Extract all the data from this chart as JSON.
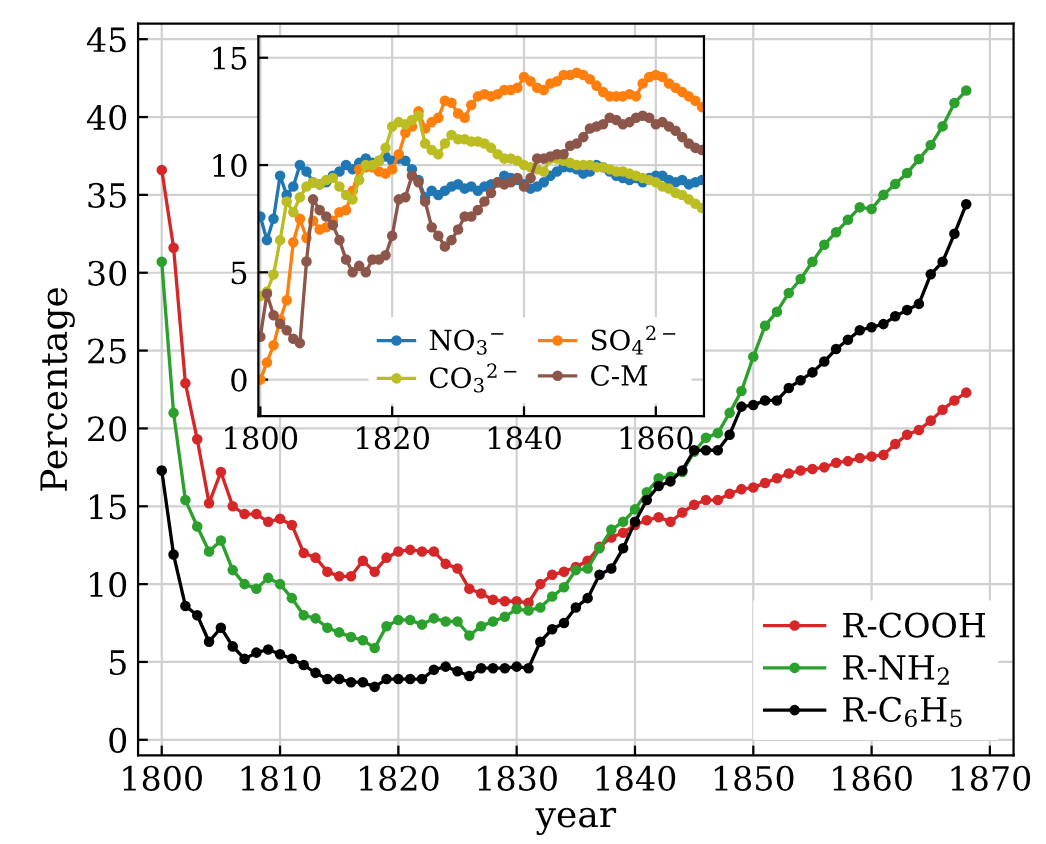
{
  "chart_data": [
    {
      "type": "line",
      "xlabel": "year",
      "ylabel": "Percentage",
      "x": [
        1800,
        1801,
        1802,
        1803,
        1804,
        1805,
        1806,
        1807,
        1808,
        1809,
        1810,
        1811,
        1812,
        1813,
        1814,
        1815,
        1816,
        1817,
        1818,
        1819,
        1820,
        1821,
        1822,
        1823,
        1824,
        1825,
        1826,
        1827,
        1828,
        1829,
        1830,
        1831,
        1832,
        1833,
        1834,
        1835,
        1836,
        1837,
        1838,
        1839,
        1840,
        1841,
        1842,
        1843,
        1844,
        1845,
        1846,
        1847,
        1848,
        1849,
        1850,
        1851,
        1852,
        1853,
        1854,
        1855,
        1856,
        1857,
        1858,
        1859,
        1860,
        1861,
        1862,
        1863,
        1864,
        1865,
        1866,
        1867,
        1868
      ],
      "xlim": [
        1798,
        1872
      ],
      "xticks": [
        1800,
        1810,
        1820,
        1830,
        1840,
        1850,
        1860,
        1870
      ],
      "ylim": [
        -1,
        46
      ],
      "yticks": [
        0,
        5,
        10,
        15,
        20,
        25,
        30,
        35,
        40,
        45
      ],
      "grid": true,
      "legend": "bottom right",
      "marker": "circle",
      "line_style": "solid",
      "series": [
        {
          "name": "R-COOH",
          "color": "#d62728",
          "values": [
            36.6,
            31.6,
            22.9,
            19.3,
            15.2,
            17.2,
            15.0,
            14.5,
            14.5,
            14.0,
            14.2,
            13.8,
            12.0,
            11.7,
            10.8,
            10.5,
            10.5,
            11.5,
            10.8,
            11.7,
            12.1,
            12.2,
            12.1,
            12.1,
            11.3,
            11.0,
            9.7,
            9.4,
            9.0,
            8.9,
            8.9,
            8.8,
            10.0,
            10.6,
            10.8,
            11.1,
            11.5,
            12.4,
            13.0,
            13.3,
            13.8,
            14.1,
            14.3,
            14.0,
            14.6,
            15.1,
            15.4,
            15.4,
            15.8,
            16.1,
            16.2,
            16.5,
            16.8,
            17.1,
            17.3,
            17.4,
            17.5,
            17.8,
            17.9,
            18.1,
            18.2,
            18.3,
            19.0,
            19.6,
            19.9,
            20.5,
            21.2,
            21.8,
            22.3
          ]
        },
        {
          "name": "R-NH$_{2}$",
          "color": "#2ca02c",
          "values": [
            30.7,
            21.0,
            15.4,
            13.7,
            12.1,
            12.8,
            10.9,
            10.0,
            9.7,
            10.4,
            10.0,
            9.1,
            8.0,
            7.8,
            7.2,
            6.9,
            6.6,
            6.4,
            5.9,
            7.3,
            7.7,
            7.7,
            7.4,
            7.8,
            7.6,
            7.6,
            6.7,
            7.3,
            7.6,
            7.9,
            8.4,
            8.3,
            8.5,
            9.2,
            9.8,
            10.9,
            11.0,
            12.3,
            13.5,
            14.0,
            14.8,
            15.9,
            16.8,
            16.9,
            17.2,
            18.5,
            19.4,
            19.7,
            21.0,
            22.4,
            24.6,
            26.6,
            27.5,
            28.7,
            29.6,
            30.7,
            31.8,
            32.6,
            33.4,
            34.2,
            34.1,
            35.0,
            35.7,
            36.4,
            37.3,
            38.2,
            39.4,
            40.9,
            41.7
          ]
        },
        {
          "name": "R-C$_{6}$H$_{5}$",
          "color": "#000000",
          "values": [
            17.3,
            11.9,
            8.6,
            8.0,
            6.3,
            7.2,
            6.0,
            5.2,
            5.6,
            5.8,
            5.5,
            5.2,
            4.8,
            4.3,
            3.9,
            3.9,
            3.7,
            3.7,
            3.4,
            3.9,
            3.9,
            3.9,
            3.9,
            4.5,
            4.7,
            4.4,
            4.1,
            4.6,
            4.6,
            4.6,
            4.7,
            4.6,
            6.3,
            7.1,
            7.5,
            8.5,
            9.1,
            10.6,
            11.0,
            12.3,
            14.0,
            15.4,
            16.3,
            16.6,
            17.3,
            18.6,
            18.6,
            18.6,
            19.6,
            21.4,
            21.5,
            21.8,
            21.8,
            22.6,
            23.1,
            23.6,
            24.3,
            25.1,
            25.7,
            26.3,
            26.5,
            26.7,
            27.2,
            27.6,
            28.0,
            29.9,
            30.7,
            32.5,
            34.4
          ]
        }
      ]
    },
    {
      "type": "line",
      "x": [
        1800,
        1801,
        1802,
        1803,
        1804,
        1805,
        1806,
        1807,
        1808,
        1809,
        1810,
        1811,
        1812,
        1813,
        1814,
        1815,
        1816,
        1817,
        1818,
        1819,
        1820,
        1821,
        1822,
        1823,
        1824,
        1825,
        1826,
        1827,
        1828,
        1829,
        1830,
        1831,
        1832,
        1833,
        1834,
        1835,
        1836,
        1837,
        1838,
        1839,
        1840,
        1841,
        1842,
        1843,
        1844,
        1845,
        1846,
        1847,
        1848,
        1849,
        1850,
        1851,
        1852,
        1853,
        1854,
        1855,
        1856,
        1857,
        1858,
        1859,
        1860,
        1861,
        1862,
        1863,
        1864,
        1865,
        1866,
        1867
      ],
      "xlim": [
        1799.7,
        1867.3
      ],
      "xticks": [
        1800,
        1820,
        1840,
        1860
      ],
      "ylim": [
        -1.7,
        16
      ],
      "yticks": [
        0,
        5,
        10,
        15
      ],
      "grid": true,
      "legend": "bottom right",
      "marker": "circle",
      "line_style": "solid",
      "series": [
        {
          "name": "NO$_{3}$$^{−}$",
          "color": "#1f77b4",
          "values": [
            7.6,
            6.5,
            7.5,
            9.5,
            8.6,
            9.0,
            10.0,
            9.7,
            9.2,
            9.1,
            9.2,
            9.5,
            9.7,
            10.0,
            9.8,
            10.1,
            10.3,
            10.1,
            10.2,
            10.4,
            10.2,
            10.3,
            10.2,
            9.8,
            9.3,
            8.5,
            8.8,
            8.6,
            8.8,
            9.0,
            9.1,
            8.9,
            9.0,
            8.8,
            9.0,
            9.1,
            9.2,
            9.5,
            9.4,
            9.3,
            9.1,
            8.9,
            9.0,
            9.2,
            9.5,
            9.7,
            9.9,
            9.9,
            9.8,
            9.6,
            9.7,
            10.0,
            9.9,
            9.7,
            9.5,
            9.4,
            9.3,
            9.4,
            9.2,
            9.4,
            9.5,
            9.5,
            9.3,
            9.2,
            9.3,
            9.1,
            9.2,
            9.3
          ]
        },
        {
          "name": "SO$_{4}$$^{2−}$",
          "color": "#ff7f0e",
          "values": [
            0.0,
            0.8,
            1.6,
            2.8,
            3.7,
            6.4,
            7.5,
            6.6,
            7.4,
            7.0,
            7.1,
            7.4,
            7.8,
            7.9,
            8.8,
            9.8,
            9.9,
            9.9,
            9.7,
            9.6,
            9.8,
            10.5,
            11.5,
            11.8,
            12.5,
            11.7,
            12.0,
            12.2,
            13.0,
            12.9,
            12.4,
            12.2,
            12.8,
            13.2,
            13.3,
            13.2,
            13.3,
            13.5,
            13.5,
            13.6,
            14.1,
            13.9,
            13.6,
            13.5,
            13.8,
            13.9,
            14.2,
            14.2,
            14.3,
            14.2,
            14.0,
            13.7,
            13.4,
            13.2,
            13.2,
            13.2,
            13.3,
            13.2,
            13.8,
            14.1,
            14.2,
            14.1,
            13.8,
            13.6,
            13.4,
            13.2,
            13.0,
            12.7
          ]
        },
        {
          "name": "CO$_{3}$$^{2−}$",
          "color": "#bcbd22",
          "values": [
            3.9,
            4.1,
            4.9,
            6.5,
            8.3,
            7.8,
            8.5,
            9.0,
            9.2,
            9.1,
            9.3,
            9.4,
            9.0,
            8.6,
            8.4,
            9.3,
            10.0,
            10.0,
            10.2,
            10.8,
            11.8,
            12.0,
            11.9,
            12.1,
            12.3,
            11.0,
            10.7,
            10.5,
            11.0,
            11.4,
            11.2,
            11.2,
            11.1,
            11.1,
            11.0,
            10.8,
            10.5,
            10.3,
            10.3,
            10.2,
            10.0,
            9.9,
            9.8,
            9.7,
            10.3,
            10.3,
            10.2,
            10.1,
            10.0,
            10.0,
            10.0,
            9.9,
            9.9,
            9.8,
            9.7,
            9.7,
            9.6,
            9.5,
            9.4,
            9.3,
            9.2,
            9.0,
            8.9,
            8.7,
            8.6,
            8.4,
            8.2,
            8.0
          ]
        },
        {
          "name": "C-M",
          "color": "#8c564b",
          "values": [
            2.0,
            4.0,
            3.0,
            2.6,
            2.3,
            1.9,
            1.7,
            5.5,
            8.4,
            7.9,
            7.6,
            7.2,
            6.5,
            5.6,
            5.0,
            5.3,
            5.0,
            5.6,
            5.6,
            5.8,
            6.7,
            8.4,
            8.5,
            9.5,
            9.2,
            8.3,
            7.1,
            6.7,
            6.2,
            6.5,
            7.0,
            7.6,
            7.6,
            7.9,
            8.3,
            8.7,
            9.2,
            9.1,
            9.2,
            9.4,
            9.0,
            9.4,
            10.3,
            10.3,
            10.4,
            10.5,
            10.5,
            10.9,
            11.0,
            11.3,
            11.7,
            11.8,
            11.9,
            12.2,
            12.1,
            11.9,
            12.0,
            12.2,
            12.3,
            12.2,
            11.9,
            12.0,
            11.8,
            11.6,
            11.3,
            11.0,
            10.8,
            10.7
          ]
        }
      ]
    }
  ]
}
